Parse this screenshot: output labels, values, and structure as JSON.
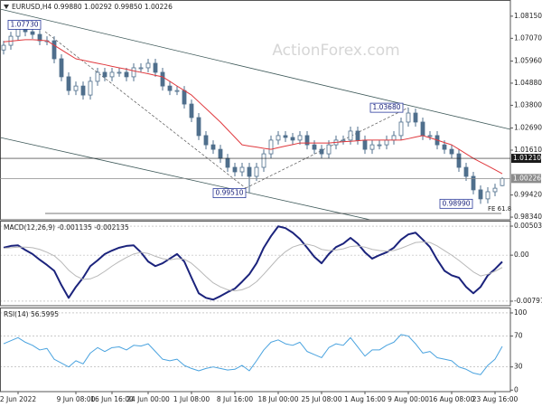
{
  "chart_data": [
    {
      "type": "candlestick",
      "title": "EURUSD,H4  0.99880 1.00292 0.99850 1.00226",
      "watermark": "ActionForex.com",
      "color": "#4f6f8c",
      "categories": [
        null,
        null,
        "2 Jun 2022",
        null,
        null,
        null,
        null,
        null,
        null,
        null,
        "9 Jun 08:00",
        null,
        null,
        null,
        null,
        "16 Jun 16:00",
        null,
        null,
        null,
        null,
        "24 Jun 00:00",
        null,
        null,
        null,
        null,
        null,
        "1 Jul 08:00",
        null,
        null,
        null,
        null,
        null,
        "8 Jul 16:00",
        null,
        null,
        null,
        null,
        null,
        "18 Jul 00:00",
        null,
        null,
        null,
        null,
        null,
        "25 Jul 08:00",
        null,
        null,
        null,
        null,
        null,
        "1 Aug 16:00",
        null,
        null,
        null,
        null,
        null,
        "9 Aug 00:00",
        null,
        null,
        null,
        null,
        null,
        "16 Aug 08:00",
        null,
        null,
        null,
        null,
        null,
        "23 Aug 16:00",
        null
      ],
      "open": [
        1.065,
        1.0673,
        1.0717,
        1.0762,
        1.0739,
        1.0726,
        1.0695,
        1.0695,
        1.0607,
        1.0519,
        1.0452,
        1.0474,
        1.043,
        1.0497,
        1.0541,
        1.0519,
        1.0541,
        1.0541,
        1.0519,
        1.0563,
        1.0563,
        1.0585,
        1.0541,
        1.0474,
        1.0452,
        1.0452,
        1.0386,
        1.032,
        1.0232,
        1.0187,
        1.0165,
        1.0121,
        1.0077,
        1.0055,
        1.0077,
        1.0033,
        1.0077,
        1.0143,
        1.021,
        1.0232,
        1.0223,
        1.021,
        1.0232,
        1.0187,
        1.0165,
        1.0143,
        1.0187,
        1.021,
        1.021,
        1.0254,
        1.021,
        1.0165,
        1.0187,
        1.0187,
        1.021,
        1.0232,
        1.0298,
        1.0342,
        1.0298,
        1.0232,
        1.0232,
        1.0187,
        1.0165,
        1.0143,
        1.0077,
        1.0033,
        0.9967,
        0.9923,
        0.9958,
        0.9988
      ],
      "high": [
        1.0695,
        1.0739,
        1.0773,
        1.077,
        1.0761,
        1.0748,
        1.0717,
        1.0717,
        1.0629,
        1.0541,
        1.0496,
        1.0496,
        1.0519,
        1.0563,
        1.0563,
        1.0563,
        1.0563,
        1.0563,
        1.0585,
        1.0585,
        1.0607,
        1.0607,
        1.0563,
        1.0496,
        1.0474,
        1.0474,
        1.0408,
        1.0342,
        1.0254,
        1.0209,
        1.0187,
        1.0143,
        1.0099,
        1.0099,
        1.0099,
        1.0099,
        1.0165,
        1.0232,
        1.0254,
        1.0254,
        1.0245,
        1.0254,
        1.0254,
        1.0209,
        1.0187,
        1.0209,
        1.0232,
        1.0232,
        1.0276,
        1.0276,
        1.0232,
        1.0209,
        1.0209,
        1.0232,
        1.0254,
        1.032,
        1.0368,
        1.0364,
        1.032,
        1.0254,
        1.0254,
        1.0209,
        1.0187,
        1.0165,
        1.0099,
        1.0055,
        0.9989,
        0.998,
        0.9997,
        1.00292
      ],
      "low": [
        1.0628,
        1.0651,
        1.0695,
        1.0717,
        1.0704,
        1.0673,
        1.0673,
        1.0585,
        1.0497,
        1.043,
        1.043,
        1.0408,
        1.0408,
        1.0475,
        1.0497,
        1.0497,
        1.0519,
        1.0497,
        1.0497,
        1.0541,
        1.0541,
        1.0519,
        1.0452,
        1.043,
        1.043,
        1.0364,
        1.0298,
        1.021,
        1.0165,
        1.0143,
        1.0099,
        1.0055,
        1.0033,
        1.0033,
        0.9951,
        1.0011,
        1.0055,
        1.0121,
        1.0188,
        1.0201,
        1.0188,
        1.0188,
        1.0165,
        1.0143,
        1.0121,
        1.0121,
        1.0165,
        1.0188,
        1.0188,
        1.0188,
        1.0143,
        1.0143,
        1.0165,
        1.0165,
        1.0188,
        1.021,
        1.0276,
        1.0276,
        1.021,
        1.021,
        1.0165,
        1.0143,
        1.0121,
        1.0055,
        1.0011,
        0.9945,
        0.9899,
        0.9901,
        0.9936,
        0.9985
      ],
      "close": [
        1.0673,
        1.0717,
        1.0762,
        1.0739,
        1.0726,
        1.0695,
        1.0695,
        1.0607,
        1.0519,
        1.0452,
        1.0474,
        1.043,
        1.0497,
        1.0541,
        1.0519,
        1.0541,
        1.0541,
        1.0519,
        1.0563,
        1.0563,
        1.0585,
        1.0541,
        1.0474,
        1.0452,
        1.0452,
        1.0386,
        1.032,
        1.0232,
        1.0187,
        1.0165,
        1.0121,
        1.0077,
        1.0055,
        1.0077,
        1.0033,
        1.0077,
        1.0143,
        1.021,
        1.0232,
        1.0223,
        1.021,
        1.0232,
        1.0187,
        1.0165,
        1.0143,
        1.0187,
        1.021,
        1.021,
        1.0254,
        1.021,
        1.0165,
        1.0187,
        1.0187,
        1.021,
        1.0232,
        1.0298,
        1.0342,
        1.0298,
        1.0232,
        1.0232,
        1.0187,
        1.0165,
        1.0143,
        1.0077,
        1.0033,
        0.9967,
        0.9923,
        0.9958,
        0.9975,
        1.00226
      ],
      "ma": {
        "color": "#e0393e",
        "values": [
          1.069,
          1.0693,
          1.0697,
          1.07,
          1.07,
          1.0698,
          1.0695,
          1.0673,
          1.0651,
          1.0629,
          1.0607,
          1.06,
          1.0592,
          1.0585,
          1.0578,
          1.057,
          1.0563,
          1.0556,
          1.0548,
          1.0541,
          1.0534,
          1.0526,
          1.0519,
          1.0497,
          1.0474,
          1.0452,
          1.043,
          1.0397,
          1.0364,
          1.0331,
          1.0298,
          1.0261,
          1.0224,
          1.0187,
          1.0181,
          1.0176,
          1.017,
          1.0165,
          1.0173,
          1.0181,
          1.0188,
          1.0196,
          1.0196,
          1.0196,
          1.0196,
          1.0196,
          1.0199,
          1.0202,
          1.0204,
          1.0207,
          1.021,
          1.021,
          1.021,
          1.021,
          1.021,
          1.021,
          1.0217,
          1.0225,
          1.0232,
          1.0221,
          1.021,
          1.0198,
          1.0187,
          1.0165,
          1.0143,
          1.0121,
          1.0102,
          1.0084,
          1.0065,
          1.0046
        ]
      },
      "ylim": [
        0.9821,
        1.0894
      ],
      "yticks": [
        {
          "value": 1.0815,
          "label": "1.08150"
        },
        {
          "value": 1.0707,
          "label": "1.07070"
        },
        {
          "value": 1.0596,
          "label": "1.05960"
        },
        {
          "value": 1.0488,
          "label": "1.04880"
        },
        {
          "value": 1.038,
          "label": "1.03800"
        },
        {
          "value": 1.0269,
          "label": "1.02690"
        },
        {
          "value": 1.0161,
          "label": "1.01610"
        },
        {
          "value": 0.9942,
          "label": "0.99420"
        },
        {
          "value": 0.9834,
          "label": "0.98340"
        }
      ],
      "levels": [
        {
          "value": 1.0121,
          "label": "1.01210",
          "color": "#1a1a1a"
        },
        {
          "value": 1.00226,
          "label": "1.00226",
          "color": "#8c8c8c"
        }
      ],
      "fe_level": {
        "value": 0.9852,
        "label": "FE 61.8",
        "color": "#4a4a4a"
      },
      "annotations": [
        {
          "value": 1.0773,
          "label": "1.07730"
        },
        {
          "value": 0.9951,
          "label": "0.99510"
        },
        {
          "value": 1.0368,
          "label": "1.03680"
        },
        {
          "value": 0.9899,
          "label": "0.98990"
        }
      ],
      "grid": false
    },
    {
      "type": "line",
      "title": "MACD(12,26,9) -0.001135 -0.002135",
      "series": [
        {
          "color": "#1b237c",
          "width": 2,
          "values": [
            0.0013,
            0.0016,
            0.0017,
            0.0009,
            0.0002,
            -0.0008,
            -0.0017,
            -0.0027,
            -0.0052,
            -0.0074,
            -0.0055,
            -0.0039,
            -0.0019,
            -0.0009,
            0.0002,
            0.0008,
            0.0013,
            0.0016,
            0.0017,
            0.0005,
            -0.0011,
            -0.0019,
            -0.0014,
            -0.0006,
            0.0002,
            -0.0011,
            -0.0039,
            -0.0066,
            -0.0074,
            -0.0077,
            -0.0071,
            -0.0064,
            -0.0058,
            -0.0046,
            -0.0033,
            -0.0014,
            0.0013,
            0.0033,
            0.005,
            0.0047,
            0.0039,
            0.0028,
            0.0013,
            -0.0003,
            -0.0014,
            0.0002,
            0.0014,
            0.002,
            0.003,
            0.002,
            0.0005,
            -0.0006,
            0.0,
            0.0005,
            0.0013,
            0.0027,
            0.0036,
            0.0039,
            0.0027,
            0.0014,
            -0.0008,
            -0.0027,
            -0.0035,
            -0.0039,
            -0.0055,
            -0.0066,
            -0.0055,
            -0.0035,
            -0.0024,
            -0.001135
          ]
        },
        {
          "color": "#b8b8b8",
          "width": 1,
          "values": [
            0.0012,
            0.0013,
            0.0014,
            0.0014,
            0.0013,
            0.001,
            0.0005,
            -0.0001,
            -0.0012,
            -0.0026,
            -0.0036,
            -0.0042,
            -0.0041,
            -0.0036,
            -0.0028,
            -0.0019,
            -0.0011,
            -0.0004,
            0.0002,
            0.0005,
            0.0003,
            -0.0002,
            -0.0006,
            -0.0008,
            -0.0006,
            -0.0007,
            -0.0014,
            -0.0025,
            -0.0037,
            -0.0048,
            -0.0055,
            -0.006,
            -0.0062,
            -0.006,
            -0.0055,
            -0.0046,
            -0.0033,
            -0.0019,
            -0.0005,
            0.0006,
            0.0014,
            0.0018,
            0.0019,
            0.0016,
            0.001,
            0.0008,
            0.0009,
            0.0011,
            0.0015,
            0.0016,
            0.0014,
            0.001,
            0.0008,
            0.0007,
            0.0008,
            0.0012,
            0.0017,
            0.0022,
            0.0023,
            0.0022,
            0.0016,
            0.0008,
            0.0,
            -0.0009,
            -0.0019,
            -0.0029,
            -0.0036,
            -0.0033,
            -0.0028,
            -0.002135
          ]
        }
      ],
      "ylim": [
        -0.00876,
        0.00598
      ],
      "yticks": [
        0.005035,
        {
          "value": 0,
          "label": "0.00"
        },
        -0.007973
      ],
      "grid": true
    },
    {
      "type": "line",
      "title": "RSI(14) 56.5995",
      "series": [
        {
          "color": "#4aa3df",
          "width": 1,
          "values": [
            60,
            64,
            68,
            62,
            58,
            52,
            54,
            40,
            35,
            30,
            38,
            34,
            48,
            55,
            50,
            55,
            56,
            52,
            58,
            57,
            60,
            50,
            40,
            38,
            40,
            32,
            28,
            25,
            28,
            30,
            28,
            26,
            27,
            32,
            25,
            38,
            52,
            62,
            65,
            60,
            58,
            62,
            50,
            46,
            42,
            55,
            60,
            58,
            68,
            56,
            44,
            52,
            52,
            58,
            62,
            72,
            70,
            60,
            48,
            50,
            42,
            40,
            38,
            30,
            27,
            22,
            20,
            32,
            40,
            56.5995
          ]
        }
      ],
      "ylim": [
        -2,
        107
      ],
      "yticks": [
        100,
        70,
        30,
        0
      ],
      "grid": true
    }
  ]
}
